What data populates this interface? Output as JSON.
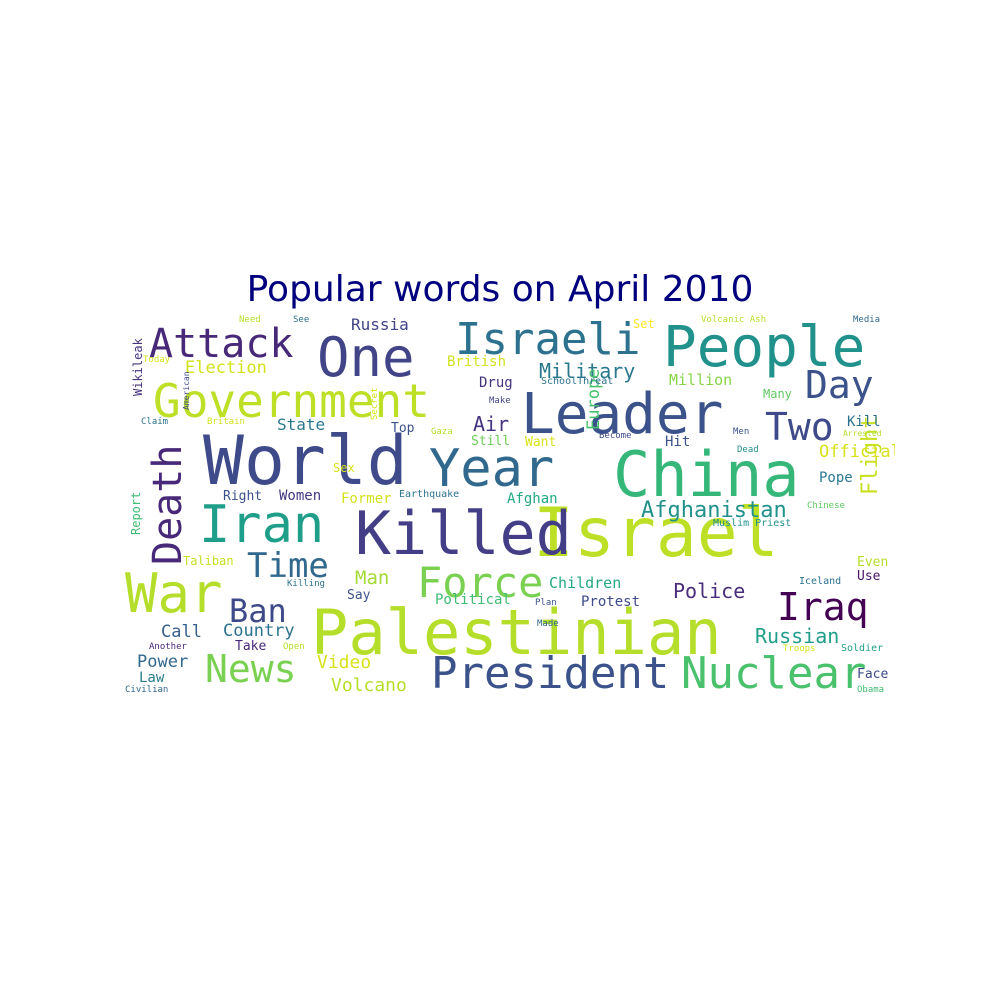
{
  "title": "Popular words on April 2010",
  "words": [
    {
      "text": "Palestinian",
      "color": "#b5de2b"
    },
    {
      "text": "World",
      "color": "#3e4a89"
    },
    {
      "text": "Israel",
      "color": "#bddf26"
    },
    {
      "text": "China",
      "color": "#35b779"
    },
    {
      "text": "Killed",
      "color": "#433e85"
    },
    {
      "text": "Leader",
      "color": "#3b528b"
    },
    {
      "text": "People",
      "color": "#21918c"
    },
    {
      "text": "Government",
      "color": "#bddf26"
    },
    {
      "text": "Year",
      "color": "#31688e"
    },
    {
      "text": "President",
      "color": "#3b528b"
    },
    {
      "text": "Nuclear",
      "color": "#4ac16d"
    },
    {
      "text": "Iran",
      "color": "#1f9e89"
    },
    {
      "text": "One",
      "color": "#414487"
    },
    {
      "text": "War",
      "color": "#b5de2b"
    },
    {
      "text": "Israeli",
      "color": "#2c728e"
    },
    {
      "text": "Force",
      "color": "#7ad151"
    },
    {
      "text": "News",
      "color": "#7ad151"
    },
    {
      "text": "Attack",
      "color": "#482878"
    },
    {
      "text": "Death",
      "color": "#482878"
    },
    {
      "text": "Day",
      "color": "#3b528b"
    },
    {
      "text": "Two",
      "color": "#3e4a89"
    },
    {
      "text": "Time",
      "color": "#31688e"
    },
    {
      "text": "Iraq",
      "color": "#440154"
    },
    {
      "text": "Ban",
      "color": "#3e4a89"
    },
    {
      "text": "Afghanistan",
      "color": "#21918c"
    },
    {
      "text": "Military",
      "color": "#2a788e"
    },
    {
      "text": "Flight",
      "color": "#c8e020"
    },
    {
      "text": "Russian",
      "color": "#1f9e89"
    },
    {
      "text": "Police",
      "color": "#472d7b"
    },
    {
      "text": "Election",
      "color": "#d2e21b"
    },
    {
      "text": "Europe",
      "color": "#4ac16d"
    },
    {
      "text": "Video",
      "color": "#d8e219"
    },
    {
      "text": "Volcano",
      "color": "#b5de2b"
    },
    {
      "text": "Official",
      "color": "#d8e219"
    },
    {
      "text": "Man",
      "color": "#a5db36"
    },
    {
      "text": "Call",
      "color": "#355f8d"
    },
    {
      "text": "Country",
      "color": "#2c728e"
    },
    {
      "text": "Power",
      "color": "#31688e"
    },
    {
      "text": "Children",
      "color": "#22a884"
    },
    {
      "text": "Russia",
      "color": "#414487"
    },
    {
      "text": "Air",
      "color": "#46337e"
    },
    {
      "text": "Million",
      "color": "#86d549"
    },
    {
      "text": "State",
      "color": "#2a788e"
    },
    {
      "text": "British",
      "color": "#d2e21b"
    },
    {
      "text": "Protest",
      "color": "#3e4a89"
    },
    {
      "text": "Political",
      "color": "#3fbc73"
    },
    {
      "text": "Afghan",
      "color": "#22a884"
    },
    {
      "text": "Report",
      "color": "#3fbc73"
    },
    {
      "text": "Right",
      "color": "#3b528b"
    },
    {
      "text": "Women",
      "color": "#453781"
    },
    {
      "text": "Former",
      "color": "#d2e21b"
    },
    {
      "text": "Law",
      "color": "#287c8e"
    },
    {
      "text": "Drug",
      "color": "#46337e"
    },
    {
      "text": "Take",
      "color": "#472c7a"
    },
    {
      "text": "Say",
      "color": "#3b528b"
    },
    {
      "text": "Wikileak",
      "color": "#46327e"
    },
    {
      "text": "Top",
      "color": "#3b528b"
    },
    {
      "text": "Still",
      "color": "#6ccd5a"
    },
    {
      "text": "Want",
      "color": "#d8e219"
    },
    {
      "text": "Hit",
      "color": "#3b528b"
    },
    {
      "text": "Kill",
      "color": "#2c728e"
    },
    {
      "text": "Pope",
      "color": "#2a788e"
    },
    {
      "text": "Even",
      "color": "#b5de2b"
    },
    {
      "text": "Use",
      "color": "#481668"
    },
    {
      "text": "Face",
      "color": "#3e4a89"
    },
    {
      "text": "Taliban",
      "color": "#c8e020"
    },
    {
      "text": "Many",
      "color": "#5ec962"
    },
    {
      "text": "Sex",
      "color": "#d8e219"
    },
    {
      "text": "Set",
      "color": "#fde725"
    },
    {
      "text": "Earthquake",
      "color": "#2c728e"
    },
    {
      "text": "SchoolThreat",
      "color": "#2c728e"
    },
    {
      "text": "Muslim Priest",
      "color": "#21918c"
    },
    {
      "text": "Iceland",
      "color": "#2c728e"
    },
    {
      "text": "Soldier",
      "color": "#1f9e89"
    },
    {
      "text": "Troops",
      "color": "#d2e21b"
    },
    {
      "text": "Plan",
      "color": "#3b528b"
    },
    {
      "text": "Made",
      "color": "#31688e"
    },
    {
      "text": "Another",
      "color": "#482878"
    },
    {
      "text": "Open",
      "color": "#b5de2b"
    },
    {
      "text": "Civilian",
      "color": "#31688e"
    },
    {
      "text": "Obama",
      "color": "#3fbc73"
    },
    {
      "text": "Killing",
      "color": "#2c728e"
    },
    {
      "text": "Secret",
      "color": "#d8e219"
    },
    {
      "text": "Gaza",
      "color": "#b5de2b"
    },
    {
      "text": "Become",
      "color": "#3e4a89"
    },
    {
      "text": "Dead",
      "color": "#21918c"
    },
    {
      "text": "Men",
      "color": "#3b528b"
    },
    {
      "text": "Arrested",
      "color": "#b5de2b"
    },
    {
      "text": "Chinese",
      "color": "#5ec962"
    },
    {
      "text": "Make",
      "color": "#414487"
    },
    {
      "text": "Claim",
      "color": "#2c728e"
    },
    {
      "text": "Britain",
      "color": "#d2e21b"
    },
    {
      "text": "American",
      "color": "#3e4a89"
    },
    {
      "text": "Today",
      "color": "#d8e219"
    },
    {
      "text": "Need",
      "color": "#b5de2b"
    },
    {
      "text": "See",
      "color": "#2c728e"
    },
    {
      "text": "Volcanic Ash",
      "color": "#b5de2b"
    },
    {
      "text": "Media",
      "color": "#31688e"
    }
  ]
}
